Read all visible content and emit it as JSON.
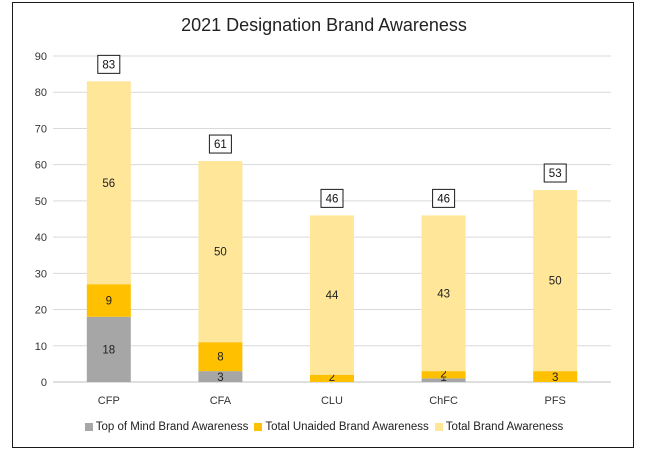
{
  "chart_data": {
    "type": "bar",
    "title": "2021 Designation Brand Awareness",
    "categories": [
      "CFP",
      "CFA",
      "CLU",
      "ChFC",
      "PFS"
    ],
    "series": [
      {
        "name": "Top of Mind Brand Awareness",
        "color": "#a6a6a6",
        "values": [
          18,
          3,
          0,
          1,
          0
        ],
        "labels": [
          "18",
          "3",
          "",
          "1",
          ""
        ]
      },
      {
        "name": "Total Unaided Brand Awareness",
        "color": "#ffc000",
        "values": [
          9,
          8,
          2,
          2,
          3
        ],
        "labels": [
          "9",
          "8",
          "2",
          "2",
          "3"
        ]
      },
      {
        "name": "Total Brand Awareness",
        "color": "#ffe699",
        "values": [
          56,
          50,
          44,
          43,
          50
        ],
        "labels": [
          "56",
          "50",
          "44",
          "43",
          "50"
        ]
      }
    ],
    "totals": [
      "83",
      "61",
      "46",
      "46",
      "53"
    ],
    "y_ticks": [
      "0",
      "10",
      "20",
      "30",
      "40",
      "50",
      "60",
      "70",
      "80",
      "90"
    ],
    "ylim": [
      0,
      90
    ],
    "grid": true,
    "legend_position": "bottom",
    "xlabel": "",
    "ylabel": ""
  }
}
